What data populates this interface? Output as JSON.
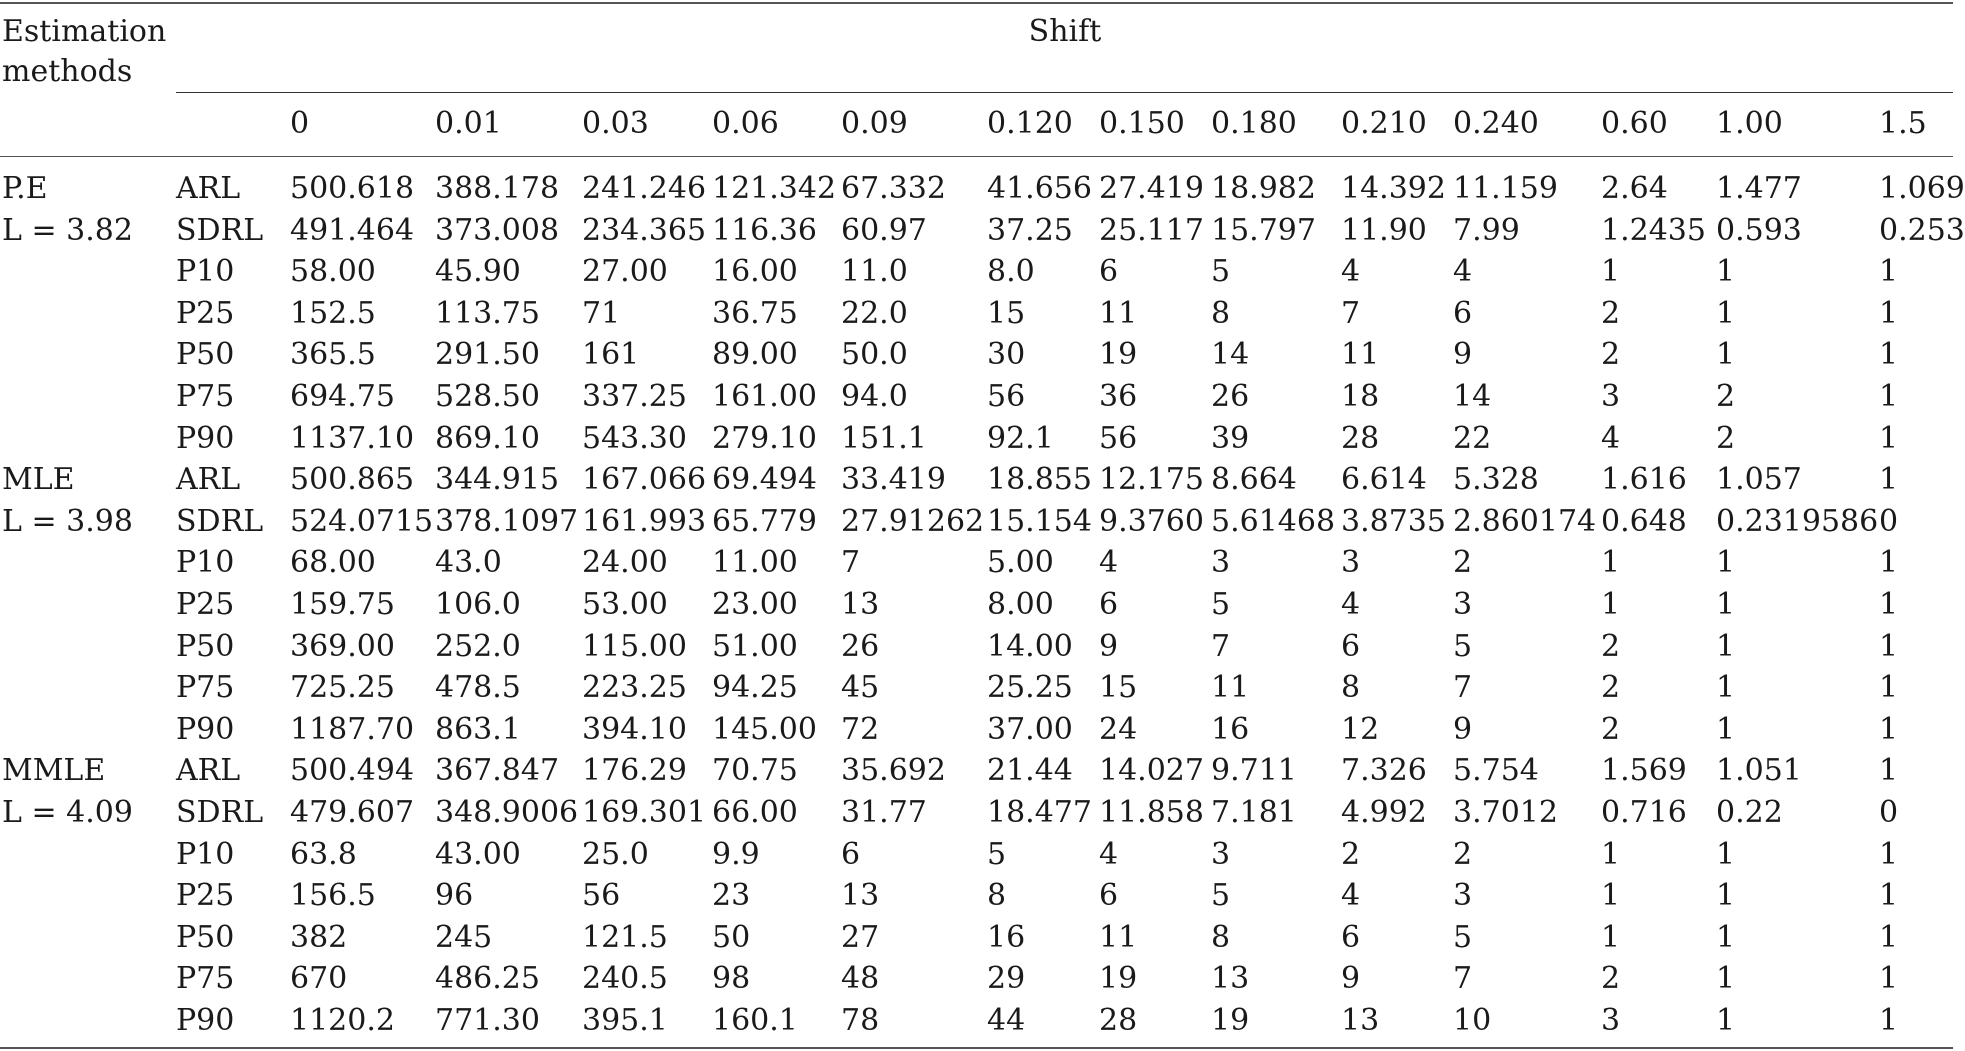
{
  "header": {
    "method_label_line1": "Estimation",
    "method_label_line2": "methods",
    "shift_label": "Shift",
    "shift_values": [
      "0",
      "0.01",
      "0.03",
      "0.06",
      "0.09",
      "0.120",
      "0.150",
      "0.180",
      "0.210",
      "0.240",
      "0.60",
      "1.00",
      "1.5"
    ]
  },
  "groups": [
    {
      "method": "P.E",
      "limit": "L = 3.82",
      "rows": [
        {
          "stat": "ARL",
          "values": [
            "500.618",
            "388.178",
            "241.246",
            "121.342",
            "67.332",
            "41.656",
            "27.419",
            "18.982",
            "14.392",
            "11.159",
            "2.64",
            "1.477",
            "1.069"
          ]
        },
        {
          "stat": "SDRL",
          "values": [
            "491.464",
            "373.008",
            "234.365",
            "116.36",
            "60.97",
            "37.25",
            "25.117",
            "15.797",
            "11.90",
            "7.99",
            "1.2435",
            "0.593",
            "0.253"
          ]
        },
        {
          "stat": "P10",
          "values": [
            "58.00",
            "45.90",
            "27.00",
            "16.00",
            "11.0",
            "8.0",
            "6",
            "5",
            "4",
            "4",
            "1",
            "1",
            "1"
          ]
        },
        {
          "stat": "P25",
          "values": [
            "152.5",
            "113.75",
            "71",
            "36.75",
            "22.0",
            "15",
            "11",
            "8",
            "7",
            "6",
            "2",
            "1",
            "1"
          ]
        },
        {
          "stat": "P50",
          "values": [
            "365.5",
            "291.50",
            "161",
            "89.00",
            "50.0",
            "30",
            "19",
            "14",
            "11",
            "9",
            "2",
            "1",
            "1"
          ]
        },
        {
          "stat": "P75",
          "values": [
            "694.75",
            "528.50",
            "337.25",
            "161.00",
            "94.0",
            "56",
            "36",
            "26",
            "18",
            "14",
            "3",
            "2",
            "1"
          ]
        },
        {
          "stat": "P90",
          "values": [
            "1137.10",
            "869.10",
            "543.30",
            "279.10",
            "151.1",
            "92.1",
            "56",
            "39",
            "28",
            "22",
            "4",
            "2",
            "1"
          ]
        }
      ]
    },
    {
      "method": "MLE",
      "limit": "L = 3.98",
      "rows": [
        {
          "stat": "ARL",
          "values": [
            "500.865",
            "344.915",
            "167.066",
            "69.494",
            "33.419",
            "18.855",
            "12.175",
            "8.664",
            "6.614",
            "5.328",
            "1.616",
            "1.057",
            "1"
          ]
        },
        {
          "stat": "SDRL",
          "values": [
            "524.0715",
            "378.1097",
            "161.993",
            "65.779",
            "27.91262",
            "15.154",
            "9.3760",
            "5.61468",
            "3.8735",
            "2.860174",
            "0.648",
            "0.2319586",
            "0"
          ]
        },
        {
          "stat": "P10",
          "values": [
            "68.00",
            "43.0",
            "24.00",
            "11.00",
            "7",
            "5.00",
            "4",
            "3",
            "3",
            "2",
            "1",
            "1",
            "1"
          ]
        },
        {
          "stat": "P25",
          "values": [
            "159.75",
            "106.0",
            "53.00",
            "23.00",
            "13",
            "8.00",
            "6",
            "5",
            "4",
            "3",
            "1",
            "1",
            "1"
          ]
        },
        {
          "stat": "P50",
          "values": [
            "369.00",
            "252.0",
            "115.00",
            "51.00",
            "26",
            "14.00",
            "9",
            "7",
            "6",
            "5",
            "2",
            "1",
            "1"
          ]
        },
        {
          "stat": "P75",
          "values": [
            "725.25",
            "478.5",
            "223.25",
            "94.25",
            "45",
            "25.25",
            "15",
            "11",
            "8",
            "7",
            "2",
            "1",
            "1"
          ]
        },
        {
          "stat": "P90",
          "values": [
            "1187.70",
            "863.1",
            "394.10",
            "145.00",
            "72",
            "37.00",
            "24",
            "16",
            "12",
            "9",
            "2",
            "1",
            "1"
          ]
        }
      ]
    },
    {
      "method": "MMLE",
      "limit": "L = 4.09",
      "rows": [
        {
          "stat": "ARL",
          "values": [
            "500.494",
            "367.847",
            "176.29",
            "70.75",
            "35.692",
            "21.44",
            "14.027",
            "9.711",
            "7.326",
            "5.754",
            "1.569",
            "1.051",
            "1"
          ]
        },
        {
          "stat": "SDRL",
          "values": [
            "479.607",
            "348.9006",
            "169.301",
            "66.00",
            "31.77",
            "18.477",
            "11.858",
            "7.181",
            "4.992",
            "3.7012",
            "0.716",
            "0.22",
            "0"
          ]
        },
        {
          "stat": "P10",
          "values": [
            "63.8",
            "43.00",
            "25.0",
            "9.9",
            "6",
            "5",
            "4",
            "3",
            "2",
            "2",
            "1",
            "1",
            "1"
          ]
        },
        {
          "stat": "P25",
          "values": [
            "156.5",
            "96",
            "56",
            "23",
            "13",
            "8",
            "6",
            "5",
            "4",
            "3",
            "1",
            "1",
            "1"
          ]
        },
        {
          "stat": "P50",
          "values": [
            "382",
            "245",
            "121.5",
            "50",
            "27",
            "16",
            "11",
            "8",
            "6",
            "5",
            "1",
            "1",
            "1"
          ]
        },
        {
          "stat": "P75",
          "values": [
            "670",
            "486.25",
            "240.5",
            "98",
            "48",
            "29",
            "19",
            "13",
            "9",
            "7",
            "2",
            "1",
            "1"
          ]
        },
        {
          "stat": "P90",
          "values": [
            "1120.2",
            "771.30",
            "395.1",
            "160.1",
            "78",
            "44",
            "28",
            "19",
            "13",
            "10",
            "3",
            "1",
            "1"
          ]
        }
      ]
    }
  ]
}
